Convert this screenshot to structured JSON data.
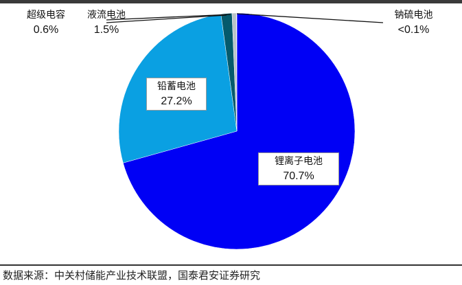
{
  "chart_data": {
    "type": "pie",
    "start": "top, clockwise",
    "slices": [
      {
        "name": "锂离子电池",
        "label": "70.7%",
        "value": 70.7,
        "color": "#0000f5"
      },
      {
        "name": "铅蓄电池",
        "label": "27.2%",
        "value": 27.2,
        "color": "#0aa0e2"
      },
      {
        "name": "液流电池",
        "label": "1.5%",
        "value": 1.5,
        "color": "#045a6c"
      },
      {
        "name": "超级电容",
        "label": "0.6%",
        "value": 0.6,
        "color": "#b9c3c8"
      },
      {
        "name": "钠硫电池",
        "label": "<0.1%",
        "value": 0.05,
        "color": "#ffffff"
      }
    ]
  },
  "source": "数据来源：中关村储能产业技术联盟，国泰君安证券研究"
}
